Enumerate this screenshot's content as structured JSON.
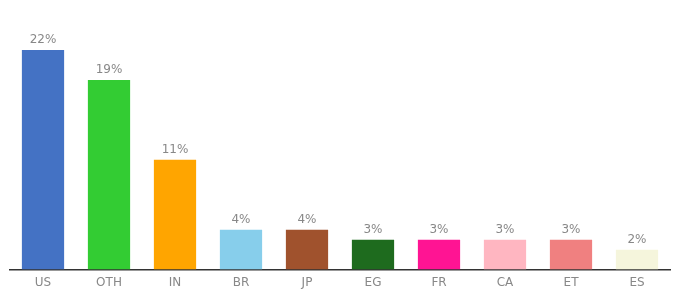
{
  "chart_data": {
    "type": "bar",
    "categories": [
      "US",
      "OTH",
      "IN",
      "BR",
      "JP",
      "EG",
      "FR",
      "CA",
      "ET",
      "ES"
    ],
    "values": [
      22,
      19,
      11,
      4,
      4,
      3,
      3,
      3,
      3,
      2
    ],
    "value_labels": [
      "22%",
      "19%",
      "11%",
      "4%",
      "4%",
      "3%",
      "3%",
      "3%",
      "3%",
      "2%"
    ],
    "colors": [
      "#4472C4",
      "#33CC33",
      "#FFA500",
      "#87CEEB",
      "#A0522D",
      "#1E6B1E",
      "#FF1493",
      "#FFB6C1",
      "#F08080",
      "#F5F5DC"
    ],
    "ylim": [
      0,
      25
    ],
    "grid": false,
    "data_labels": true,
    "tick_labels": "x"
  }
}
